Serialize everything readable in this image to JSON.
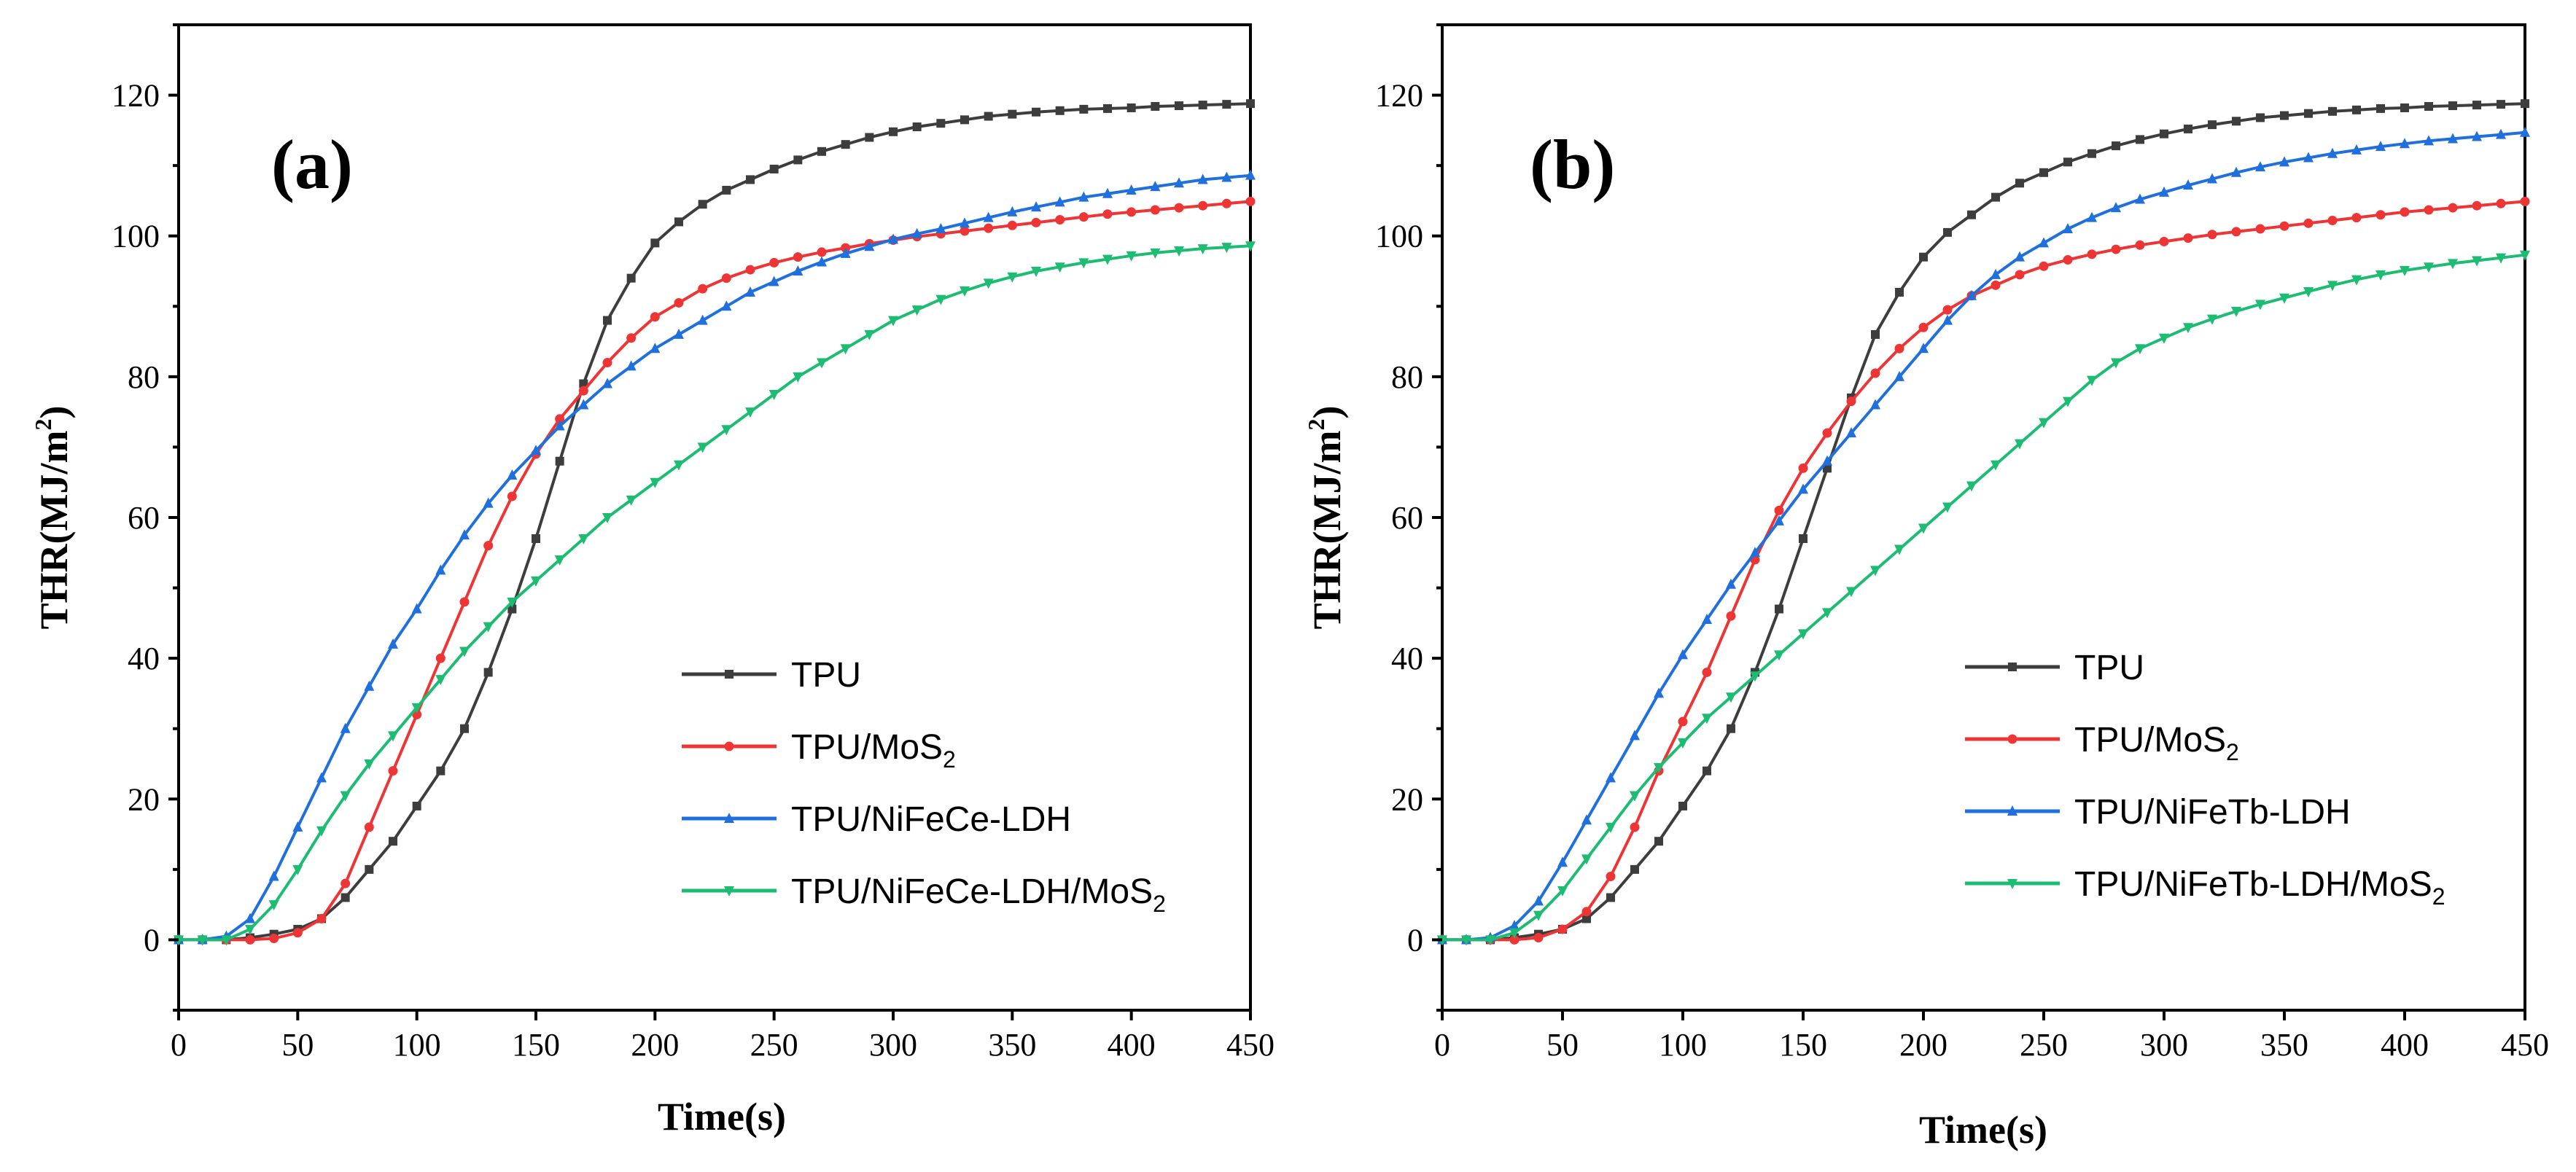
{
  "chart_data": [
    {
      "type": "line",
      "panel_label": "(a)",
      "xlabel": "Time(s)",
      "ylabel": "THR(MJ/m²)",
      "ylabel_main": "THR(MJ/m",
      "ylabel_sup": "2",
      "ylabel_tail": ")",
      "xlim": [
        0,
        450
      ],
      "ylim": [
        -10,
        130
      ],
      "xticks": [
        0,
        50,
        100,
        150,
        200,
        250,
        300,
        350,
        400,
        450
      ],
      "yticks": [
        0,
        20,
        40,
        60,
        80,
        100,
        120
      ],
      "x": [
        0,
        10,
        20,
        30,
        40,
        50,
        60,
        70,
        80,
        90,
        100,
        110,
        120,
        130,
        140,
        150,
        160,
        170,
        180,
        190,
        200,
        210,
        220,
        230,
        240,
        250,
        260,
        270,
        280,
        290,
        300,
        310,
        320,
        330,
        340,
        350,
        360,
        370,
        380,
        390,
        400,
        410,
        420,
        430,
        440,
        450
      ],
      "series": [
        {
          "name": "TPU",
          "legend_main": "TPU",
          "legend_sub": "",
          "legend_tail": "",
          "color": "#3d3d3d",
          "marker": "square",
          "values": [
            0,
            0,
            0,
            0.3,
            0.8,
            1.5,
            3,
            6,
            10,
            14,
            19,
            24,
            30,
            38,
            47,
            57,
            68,
            79,
            88,
            94,
            99,
            102,
            104.5,
            106.5,
            108,
            109.5,
            110.8,
            112,
            113,
            114,
            114.8,
            115.5,
            116,
            116.5,
            117,
            117.3,
            117.6,
            117.8,
            118,
            118.1,
            118.2,
            118.4,
            118.5,
            118.6,
            118.7,
            118.8
          ]
        },
        {
          "name": "TPU/MoS2",
          "legend_main": "TPU/MoS",
          "legend_sub": "2",
          "legend_tail": "",
          "color": "#ee3535",
          "marker": "circle",
          "values": [
            0,
            0,
            0,
            0,
            0.2,
            1,
            3,
            8,
            16,
            24,
            32,
            40,
            48,
            56,
            63,
            69,
            74,
            78,
            82,
            85.5,
            88.5,
            90.5,
            92.5,
            94,
            95.2,
            96.2,
            97,
            97.7,
            98.3,
            98.9,
            99.4,
            99.9,
            100.3,
            100.7,
            101.1,
            101.5,
            101.9,
            102.3,
            102.7,
            103.1,
            103.4,
            103.7,
            104,
            104.3,
            104.6,
            104.9
          ]
        },
        {
          "name": "TPU/NiFeCe-LDH",
          "legend_main": "TPU/NiFeCe-LDH",
          "legend_sub": "",
          "legend_tail": "",
          "color": "#1f6fdc",
          "marker": "triangle",
          "values": [
            0,
            0,
            0.5,
            3,
            9,
            16,
            23,
            30,
            36,
            42,
            47,
            52.5,
            57.5,
            62,
            66,
            69.5,
            73,
            76,
            79,
            81.5,
            84,
            86,
            88,
            90,
            92,
            93.5,
            95,
            96.3,
            97.5,
            98.5,
            99.5,
            100.3,
            101,
            101.8,
            102.6,
            103.4,
            104.1,
            104.8,
            105.5,
            106,
            106.5,
            107,
            107.5,
            108,
            108.3,
            108.6
          ]
        },
        {
          "name": "TPU/NiFeCe-LDH/MoS2",
          "legend_main": "TPU/NiFeCe-LDH/MoS",
          "legend_sub": "2",
          "legend_tail": "",
          "color": "#1dbc73",
          "marker": "triangle-down",
          "values": [
            0,
            0,
            0,
            1.5,
            5,
            10,
            15.5,
            20.5,
            25,
            29,
            33,
            37,
            41,
            44.5,
            48,
            51,
            54,
            57,
            60,
            62.5,
            65,
            67.5,
            70,
            72.5,
            75,
            77.5,
            80,
            82,
            84,
            86,
            88,
            89.5,
            91,
            92.2,
            93.3,
            94.2,
            95,
            95.6,
            96.2,
            96.7,
            97.2,
            97.6,
            97.9,
            98.2,
            98.4,
            98.6
          ]
        }
      ]
    },
    {
      "type": "line",
      "panel_label": "(b)",
      "xlabel": "Time(s)",
      "ylabel": "THR(MJ/m²)",
      "ylabel_main": "THR(MJ/m",
      "ylabel_sup": "2",
      "ylabel_tail": ")",
      "xlim": [
        0,
        450
      ],
      "ylim": [
        -10,
        130
      ],
      "xticks": [
        0,
        50,
        100,
        150,
        200,
        250,
        300,
        350,
        400,
        450
      ],
      "yticks": [
        0,
        20,
        40,
        60,
        80,
        100,
        120
      ],
      "x": [
        0,
        10,
        20,
        30,
        40,
        50,
        60,
        70,
        80,
        90,
        100,
        110,
        120,
        130,
        140,
        150,
        160,
        170,
        180,
        190,
        200,
        210,
        220,
        230,
        240,
        250,
        260,
        270,
        280,
        290,
        300,
        310,
        320,
        330,
        340,
        350,
        360,
        370,
        380,
        390,
        400,
        410,
        420,
        430,
        440,
        450
      ],
      "series": [
        {
          "name": "TPU",
          "legend_main": "TPU",
          "legend_sub": "",
          "legend_tail": "",
          "color": "#3d3d3d",
          "marker": "square",
          "values": [
            0,
            0,
            0,
            0.3,
            0.8,
            1.5,
            3,
            6,
            10,
            14,
            19,
            24,
            30,
            38,
            47,
            57,
            67,
            77,
            86,
            92,
            97,
            100.5,
            103,
            105.5,
            107.5,
            109,
            110.5,
            111.7,
            112.8,
            113.7,
            114.5,
            115.2,
            115.8,
            116.3,
            116.8,
            117.1,
            117.4,
            117.7,
            117.9,
            118.1,
            118.2,
            118.4,
            118.5,
            118.6,
            118.7,
            118.8
          ]
        },
        {
          "name": "TPU/MoS2",
          "legend_main": "TPU/MoS",
          "legend_sub": "2",
          "legend_tail": "",
          "color": "#ee3535",
          "marker": "circle",
          "values": [
            0,
            0,
            0,
            0,
            0.3,
            1.5,
            4,
            9,
            16,
            24,
            31,
            38,
            46,
            54,
            61,
            67,
            72,
            76.5,
            80.5,
            84,
            87,
            89.5,
            91.5,
            93,
            94.5,
            95.7,
            96.6,
            97.4,
            98.1,
            98.7,
            99.2,
            99.7,
            100.2,
            100.6,
            101,
            101.4,
            101.8,
            102.2,
            102.6,
            103,
            103.4,
            103.7,
            104,
            104.3,
            104.6,
            104.9
          ]
        },
        {
          "name": "TPU/NiFeTb-LDH",
          "legend_main": "TPU/NiFeTb-LDH",
          "legend_sub": "",
          "legend_tail": "",
          "color": "#1f6fdc",
          "marker": "triangle",
          "values": [
            0,
            0,
            0.3,
            2,
            5.5,
            11,
            17,
            23,
            29,
            35,
            40.5,
            45.5,
            50.5,
            55,
            59.5,
            64,
            68,
            72,
            76,
            80,
            84,
            88,
            91.5,
            94.5,
            97,
            99,
            101,
            102.6,
            104,
            105.2,
            106.2,
            107.2,
            108.1,
            109,
            109.8,
            110.5,
            111.1,
            111.7,
            112.2,
            112.7,
            113.1,
            113.5,
            113.8,
            114.1,
            114.4,
            114.7
          ]
        },
        {
          "name": "TPU/NiFeTb-LDH/MoS2",
          "legend_main": "TPU/NiFeTb-LDH/MoS",
          "legend_sub": "2",
          "legend_tail": "",
          "color": "#1dbc73",
          "marker": "triangle-down",
          "values": [
            0,
            0,
            0,
            1,
            3.5,
            7,
            11.5,
            16,
            20.5,
            24.5,
            28,
            31.5,
            34.5,
            37.5,
            40.5,
            43.5,
            46.5,
            49.5,
            52.5,
            55.5,
            58.5,
            61.5,
            64.5,
            67.5,
            70.5,
            73.5,
            76.5,
            79.5,
            82,
            84,
            85.5,
            87,
            88.2,
            89.3,
            90.3,
            91.2,
            92.1,
            93,
            93.8,
            94.5,
            95.1,
            95.6,
            96.1,
            96.5,
            96.9,
            97.3
          ]
        }
      ]
    }
  ]
}
